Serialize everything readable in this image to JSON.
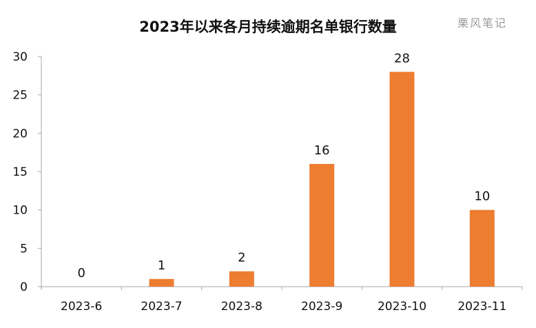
{
  "chart_data": {
    "type": "bar",
    "title": "2023年以来各月持续逾期名单银行数量",
    "watermark": "栗风笔记",
    "categories": [
      "2023-6",
      "2023-7",
      "2023-8",
      "2023-9",
      "2023-10",
      "2023-11"
    ],
    "values": [
      0,
      1,
      2,
      16,
      28,
      10
    ],
    "data_labels": [
      "0",
      "1",
      "2",
      "16",
      "28",
      "10"
    ],
    "ylim": [
      0,
      30
    ],
    "yticks": [
      0,
      5,
      10,
      15,
      20,
      25,
      30
    ],
    "ytick_labels": [
      "0",
      "5",
      "10",
      "15",
      "20",
      "25",
      "30"
    ],
    "xlabel": "",
    "ylabel": "",
    "grid": false,
    "legend": "none",
    "bar_color": "#ED7D31",
    "axis_color": "#A6A6A6"
  }
}
